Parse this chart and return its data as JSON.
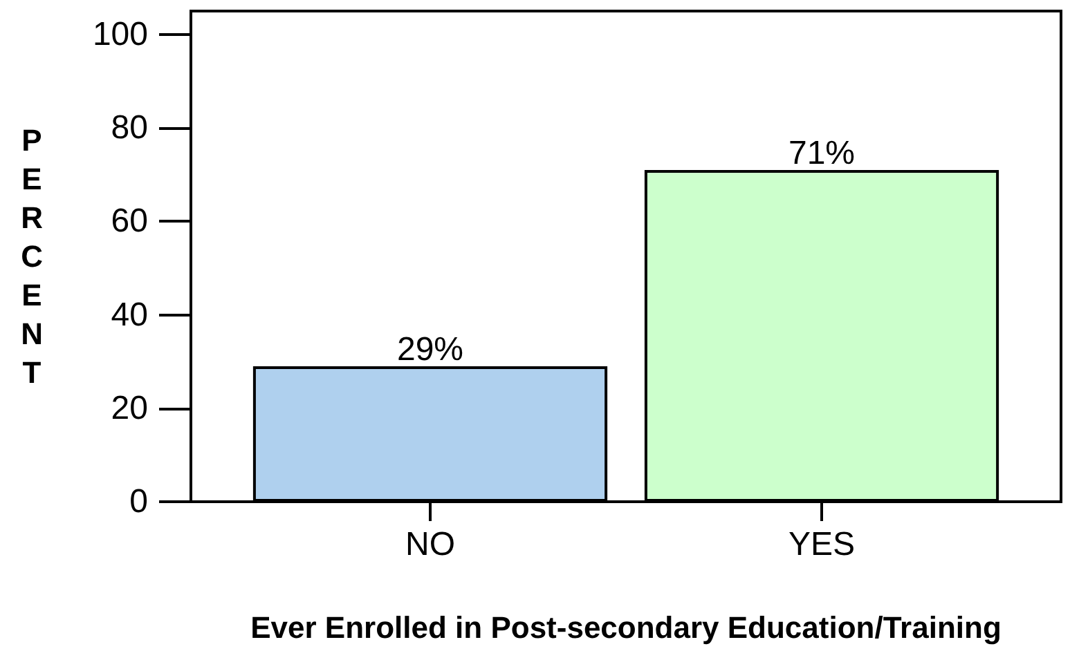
{
  "chart_data": {
    "type": "bar",
    "xlabel": "Ever Enrolled in Post-secondary Education/Training",
    "ylabel": "PERCENT",
    "categories": [
      "NO",
      "YES"
    ],
    "values": [
      29,
      71
    ],
    "colors": [
      "#afd0ee",
      "#ccffcc"
    ],
    "value_labels": [
      "29%",
      "71%"
    ],
    "ylim": [
      0,
      105
    ],
    "yticks": [
      0,
      20,
      40,
      60,
      80,
      100
    ],
    "grid": false
  }
}
